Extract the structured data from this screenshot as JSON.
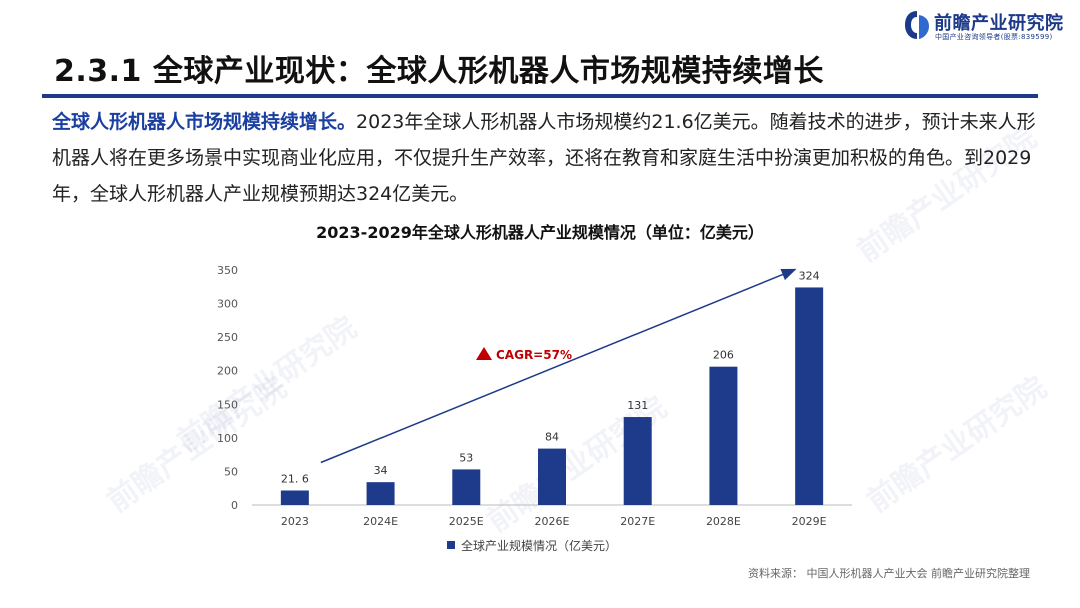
{
  "logo": {
    "name": "前瞻产业研究院",
    "sub": "中国产业咨询领导者(股票:839599)"
  },
  "slide_title": "2.3.1 全球产业现状：全球人形机器人市场规模持续增长",
  "intro": {
    "lead": "全球人形机器人市场规模持续增长。",
    "body": "2023年全球人形机器人市场规模约21.6亿美元。随着技术的进步，预计未来人形机器人将在更多场景中实现商业化应用，不仅提升生产效率，还将在教育和家庭生活中扮演更加积极的角色。到2029年，全球人形机器人产业规模预期达324亿美元。"
  },
  "chart_data": {
    "type": "bar",
    "title": "2023-2029年全球人形机器人产业规模情况（单位：亿美元）",
    "categories": [
      "2023",
      "2024E",
      "2025E",
      "2026E",
      "2027E",
      "2028E",
      "2029E"
    ],
    "series": [
      {
        "name": "全球产业规模情况（亿美元）",
        "values": [
          21.6,
          34,
          53,
          84,
          131,
          206,
          324
        ]
      }
    ],
    "data_labels": [
      "21. 6",
      "34",
      "53",
      "84",
      "131",
      "206",
      "324"
    ],
    "ylim": [
      0,
      350
    ],
    "yticks": [
      0,
      50,
      100,
      150,
      200,
      250,
      300,
      350
    ],
    "grid": false,
    "legend_position": "bottom",
    "bar_color": "#1e3a8a",
    "annotation": {
      "text": "CAGR=57%",
      "color": "#c00000"
    }
  },
  "source": "资料来源：  中国人形机器人产业大会 前瞻产业研究院整理",
  "watermark": "前瞻产业研究院"
}
